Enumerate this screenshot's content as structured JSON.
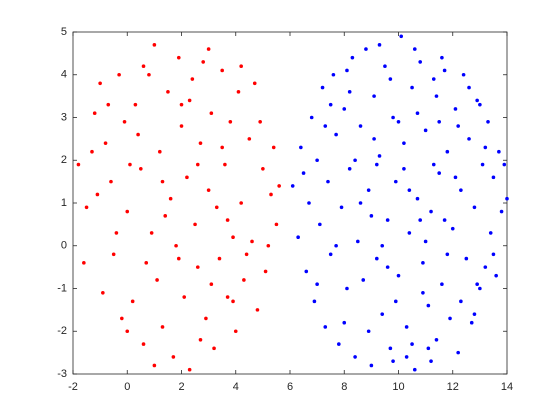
{
  "chart_data": {
    "type": "scatter",
    "xlim": [
      -2,
      14
    ],
    "ylim": [
      -3,
      5
    ],
    "xticks": [
      -2,
      0,
      2,
      4,
      6,
      8,
      10,
      12,
      14
    ],
    "yticks": [
      -3,
      -2,
      -1,
      0,
      1,
      2,
      3,
      4,
      5
    ],
    "series": [
      {
        "color": "#ff0000",
        "x": [
          -1.8,
          -1.5,
          -1.2,
          -1.0,
          -0.8,
          -0.6,
          -0.5,
          -0.3,
          -0.1,
          0.0,
          0.2,
          0.3,
          0.5,
          0.6,
          0.8,
          0.9,
          1.0,
          1.1,
          1.2,
          1.3,
          1.5,
          1.6,
          1.7,
          1.8,
          1.9,
          2.0,
          2.1,
          2.2,
          2.3,
          2.4,
          2.5,
          2.6,
          2.7,
          2.8,
          2.9,
          3.0,
          3.1,
          3.2,
          3.3,
          3.4,
          3.5,
          3.6,
          3.7,
          3.8,
          3.9,
          4.0,
          4.1,
          4.2,
          4.3,
          4.5,
          4.6,
          4.7,
          4.8,
          5.0,
          5.1,
          5.3,
          5.4,
          5.5,
          5.6,
          -1.6,
          -1.3,
          -0.9,
          -0.7,
          -0.4,
          -0.2,
          0.1,
          0.4,
          0.7,
          1.4,
          1.9,
          2.3,
          2.6,
          3.1,
          3.5,
          3.9,
          4.4,
          4.9,
          5.2,
          0.0,
          1.0,
          2.0,
          3.0,
          -1.1,
          0.6,
          4.2,
          2.7,
          1.3,
          3.7
        ],
        "values": [
          1.9,
          0.9,
          3.1,
          3.8,
          2.4,
          1.5,
          -0.2,
          4.0,
          2.9,
          0.8,
          -1.3,
          3.3,
          1.8,
          -2.3,
          4.0,
          0.3,
          4.7,
          -0.8,
          2.2,
          -1.9,
          3.6,
          1.1,
          -2.6,
          0.0,
          4.4,
          2.8,
          -1.2,
          1.6,
          -2.9,
          3.9,
          0.5,
          -0.5,
          2.4,
          4.3,
          -1.7,
          1.3,
          3.1,
          -2.4,
          0.9,
          -0.3,
          4.1,
          1.9,
          -1.2,
          2.9,
          0.2,
          -2.0,
          3.6,
          1.0,
          -0.8,
          2.5,
          0.1,
          3.8,
          -1.5,
          1.8,
          -0.6,
          1.2,
          2.3,
          0.5,
          1.4,
          -0.4,
          2.2,
          -1.1,
          3.3,
          0.3,
          -1.7,
          1.9,
          2.6,
          -0.4,
          0.7,
          -0.3,
          3.4,
          1.9,
          -0.9,
          2.3,
          -1.3,
          -0.2,
          2.9,
          0.0,
          -2.0,
          -2.8,
          3.3,
          4.6,
          1.2,
          4.2,
          4.2,
          -2.2,
          1.5,
          0.6
        ]
      },
      {
        "color": "#0000ff",
        "x": [
          6.1,
          6.3,
          6.4,
          6.6,
          6.7,
          6.8,
          6.9,
          7.0,
          7.1,
          7.2,
          7.3,
          7.4,
          7.5,
          7.6,
          7.7,
          7.8,
          7.9,
          8.0,
          8.1,
          8.2,
          8.3,
          8.4,
          8.5,
          8.6,
          8.7,
          8.8,
          8.9,
          9.0,
          9.1,
          9.2,
          9.3,
          9.4,
          9.5,
          9.6,
          9.7,
          9.8,
          9.9,
          10.0,
          10.1,
          10.2,
          10.3,
          10.4,
          10.5,
          10.6,
          10.7,
          10.8,
          10.9,
          11.0,
          11.1,
          11.2,
          11.3,
          11.4,
          11.5,
          11.6,
          11.7,
          11.8,
          11.9,
          12.0,
          12.1,
          12.2,
          12.3,
          12.4,
          12.5,
          12.6,
          12.7,
          12.8,
          12.9,
          13.0,
          13.1,
          13.2,
          13.3,
          13.4,
          13.5,
          13.6,
          13.7,
          13.8,
          13.9,
          14.0,
          6.5,
          7.0,
          7.3,
          7.7,
          8.0,
          8.2,
          8.6,
          8.9,
          9.1,
          9.4,
          9.7,
          9.9,
          10.2,
          10.5,
          10.7,
          11.0,
          11.2,
          11.5,
          11.8,
          12.1,
          12.3,
          12.6,
          12.9,
          13.2,
          13.5,
          8.4,
          9.0,
          9.6,
          10.0,
          10.4,
          10.9,
          11.3,
          11.7,
          12.2,
          12.8,
          9.3,
          10.6,
          11.6,
          8.1,
          9.8,
          10.3,
          11.1,
          7.5,
          13.0,
          9.2,
          10.8,
          11.4
        ],
        "values": [
          1.4,
          0.2,
          2.3,
          -0.6,
          1.0,
          3.0,
          -1.3,
          2.0,
          0.5,
          3.7,
          -1.9,
          1.5,
          -0.2,
          4.0,
          2.6,
          -2.3,
          0.9,
          3.2,
          -1.0,
          1.8,
          4.4,
          -2.6,
          0.1,
          2.8,
          -0.8,
          4.6,
          1.3,
          -2.8,
          3.5,
          -0.3,
          2.1,
          -1.6,
          4.2,
          0.6,
          -2.4,
          3.0,
          1.5,
          -0.7,
          4.9,
          2.4,
          -1.9,
          0.3,
          3.7,
          -2.9,
          1.1,
          4.3,
          -0.4,
          2.7,
          -1.4,
          0.8,
          3.9,
          -2.2,
          1.7,
          -0.9,
          4.1,
          2.2,
          -1.7,
          0.4,
          3.2,
          -2.5,
          1.3,
          4.0,
          -0.3,
          2.5,
          -1.8,
          0.9,
          3.4,
          -1.0,
          1.9,
          -0.5,
          2.9,
          0.3,
          1.6,
          -0.7,
          2.2,
          0.8,
          1.9,
          1.1,
          1.7,
          -0.9,
          2.8,
          0.0,
          -1.8,
          3.6,
          1.0,
          -2.0,
          2.5,
          0.0,
          3.9,
          -1.3,
          1.8,
          -2.3,
          3.1,
          0.1,
          -2.7,
          2.9,
          -0.2,
          1.6,
          -1.3,
          3.7,
          -0.9,
          2.3,
          -0.2,
          2.0,
          0.7,
          -0.5,
          2.9,
          1.3,
          -1.1,
          1.9,
          0.6,
          2.8,
          -1.6,
          4.7,
          4.6,
          4.4,
          4.1,
          -2.7,
          -2.6,
          -2.4,
          3.3,
          3.3,
          1.9,
          0.6,
          3.5
        ]
      }
    ]
  }
}
